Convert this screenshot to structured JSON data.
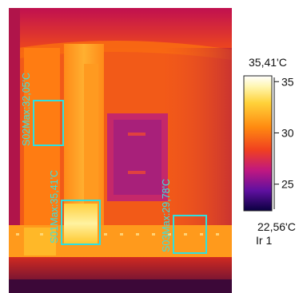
{
  "colors": {
    "roi_box": "#2ee0e0",
    "roi_text": "#35e3e3",
    "text": "#111111"
  },
  "scale": {
    "max_label": "35,41'C",
    "min_label": "22,56'C",
    "ticks": [
      {
        "value": 35,
        "label": "35"
      },
      {
        "value": 30,
        "label": "30"
      },
      {
        "value": 25,
        "label": "25"
      }
    ],
    "range": [
      22.56,
      35.41
    ]
  },
  "ir_label": "Ir 1",
  "rois": [
    {
      "id": "S02",
      "label": "S02Max:32,05'C"
    },
    {
      "id": "S01",
      "label": "S01Max:35,41'C"
    },
    {
      "id": "S03",
      "label": "S03Max:29,78'C"
    }
  ]
}
